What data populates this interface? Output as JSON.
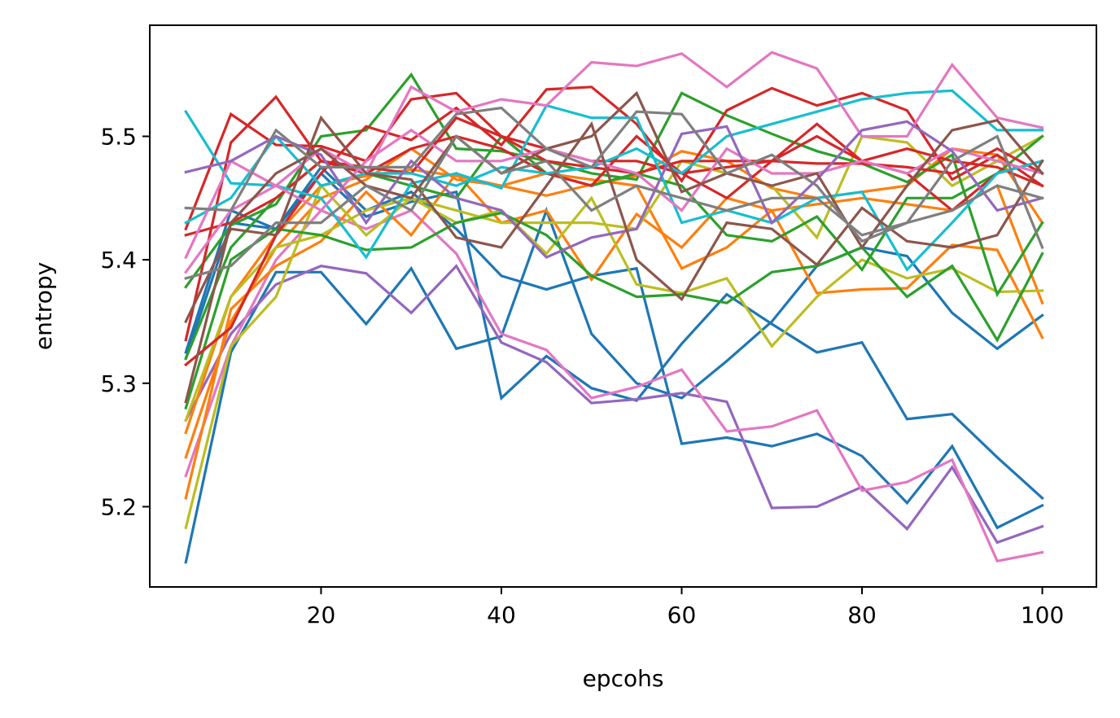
{
  "chart_data": {
    "type": "line",
    "xlabel": "epcohs",
    "ylabel": "entropy",
    "xlim": [
      1,
      106
    ],
    "ylim": [
      5.135,
      5.59
    ],
    "xticks": [
      20,
      40,
      60,
      80,
      100
    ],
    "xtick_labels": [
      "20",
      "40",
      "60",
      "80",
      "100"
    ],
    "yticks": [
      5.2,
      5.3,
      5.4,
      5.5
    ],
    "ytick_labels": [
      "5.2",
      "5.3",
      "5.4",
      "5.5"
    ],
    "grid": false,
    "legend": "none",
    "x": [
      5,
      10,
      15,
      20,
      25,
      30,
      35,
      40,
      45,
      50,
      55,
      60,
      65,
      70,
      75,
      80,
      85,
      90,
      95,
      100
    ],
    "series": [
      {
        "color": "#1f77b4",
        "values": [
          5.155,
          5.325,
          5.39,
          5.39,
          5.348,
          5.393,
          5.328,
          5.338,
          5.44,
          5.34,
          5.3,
          5.288,
          5.318,
          5.35,
          5.395,
          5.41,
          5.403,
          5.357,
          5.328,
          5.355
        ]
      },
      {
        "color": "#1f77b4",
        "values": [
          5.325,
          5.44,
          5.425,
          5.47,
          5.435,
          5.447,
          5.455,
          5.288,
          5.322,
          5.296,
          5.286,
          5.332,
          5.372,
          5.348,
          5.325,
          5.333,
          5.271,
          5.275,
          5.24,
          5.207
        ]
      },
      {
        "color": "#1f77b4",
        "values": [
          5.32,
          5.43,
          5.425,
          5.475,
          5.44,
          5.455,
          5.425,
          5.387,
          5.376,
          5.387,
          5.393,
          5.251,
          5.256,
          5.249,
          5.259,
          5.241,
          5.203,
          5.249,
          5.183,
          5.201
        ]
      },
      {
        "color": "#9467bd",
        "values": [
          5.27,
          5.34,
          5.38,
          5.395,
          5.389,
          5.357,
          5.395,
          5.333,
          5.317,
          5.284,
          5.287,
          5.292,
          5.285,
          5.199,
          5.2,
          5.216,
          5.182,
          5.232,
          5.171,
          5.184
        ]
      },
      {
        "color": "#e377c2",
        "values": [
          5.225,
          5.33,
          5.4,
          5.44,
          5.425,
          5.44,
          5.405,
          5.34,
          5.327,
          5.288,
          5.297,
          5.311,
          5.261,
          5.265,
          5.278,
          5.213,
          5.22,
          5.238,
          5.156,
          5.163
        ]
      },
      {
        "color": "#ff7f0e",
        "values": [
          5.207,
          5.36,
          5.395,
          5.415,
          5.455,
          5.42,
          5.47,
          5.43,
          5.44,
          5.384,
          5.437,
          5.41,
          5.45,
          5.44,
          5.373,
          5.376,
          5.377,
          5.412,
          5.408,
          5.337
        ]
      },
      {
        "color": "#ff7f0e",
        "values": [
          5.24,
          5.35,
          5.41,
          5.45,
          5.465,
          5.49,
          5.465,
          5.46,
          5.47,
          5.465,
          5.46,
          5.393,
          5.41,
          5.44,
          5.445,
          5.45,
          5.445,
          5.44,
          5.46,
          5.365
        ]
      },
      {
        "color": "#ff7f0e",
        "values": [
          5.26,
          5.37,
          5.42,
          5.46,
          5.468,
          5.473,
          5.468,
          5.46,
          5.452,
          5.461,
          5.468,
          5.488,
          5.48,
          5.458,
          5.45,
          5.455,
          5.46,
          5.49,
          5.485,
          5.43
        ]
      },
      {
        "color": "#bcbd22",
        "values": [
          5.183,
          5.33,
          5.37,
          5.46,
          5.42,
          5.45,
          5.43,
          5.44,
          5.405,
          5.45,
          5.38,
          5.373,
          5.385,
          5.33,
          5.37,
          5.4,
          5.385,
          5.393,
          5.374,
          5.375
        ]
      },
      {
        "color": "#bcbd22",
        "values": [
          5.27,
          5.37,
          5.41,
          5.42,
          5.44,
          5.45,
          5.44,
          5.43,
          5.43,
          5.43,
          5.425,
          5.48,
          5.47,
          5.46,
          5.418,
          5.5,
          5.495,
          5.46,
          5.48,
          5.5
        ]
      },
      {
        "color": "#2ca02c",
        "values": [
          5.28,
          5.4,
          5.425,
          5.42,
          5.408,
          5.41,
          5.43,
          5.438,
          5.42,
          5.387,
          5.37,
          5.372,
          5.365,
          5.39,
          5.395,
          5.41,
          5.37,
          5.395,
          5.335,
          5.405
        ]
      },
      {
        "color": "#2ca02c",
        "values": [
          5.378,
          5.428,
          5.445,
          5.5,
          5.505,
          5.55,
          5.49,
          5.488,
          5.48,
          5.47,
          5.465,
          5.535,
          5.517,
          5.502,
          5.488,
          5.478,
          5.463,
          5.485,
          5.372,
          5.43
        ]
      },
      {
        "color": "#2ca02c",
        "values": [
          5.32,
          5.41,
          5.45,
          5.48,
          5.47,
          5.46,
          5.45,
          5.5,
          5.47,
          5.46,
          5.47,
          5.46,
          5.42,
          5.415,
          5.435,
          5.392,
          5.45,
          5.45,
          5.47,
          5.5
        ]
      },
      {
        "color": "#d62728",
        "values": [
          5.315,
          5.345,
          5.42,
          5.47,
          5.508,
          5.497,
          5.523,
          5.493,
          5.538,
          5.54,
          5.51,
          5.464,
          5.521,
          5.539,
          5.525,
          5.535,
          5.521,
          5.465,
          5.485,
          5.46
        ]
      },
      {
        "color": "#d62728",
        "values": [
          5.425,
          5.518,
          5.493,
          5.492,
          5.48,
          5.53,
          5.535,
          5.5,
          5.49,
          5.48,
          5.48,
          5.47,
          5.475,
          5.48,
          5.478,
          5.478,
          5.475,
          5.47,
          5.49,
          5.47
        ]
      },
      {
        "color": "#d62728",
        "values": [
          5.335,
          5.495,
          5.532,
          5.48,
          5.475,
          5.47,
          5.515,
          5.5,
          5.48,
          5.475,
          5.47,
          5.48,
          5.48,
          5.48,
          5.51,
          5.48,
          5.49,
          5.48,
          5.475,
          5.46
        ]
      },
      {
        "color": "#d62728",
        "values": [
          5.42,
          5.43,
          5.45,
          5.48,
          5.47,
          5.49,
          5.5,
          5.49,
          5.47,
          5.46,
          5.5,
          5.47,
          5.45,
          5.48,
          5.5,
          5.48,
          5.47,
          5.44,
          5.47,
          5.48
        ]
      },
      {
        "color": "#17becf",
        "values": [
          5.52,
          5.462,
          5.46,
          5.45,
          5.402,
          5.462,
          5.47,
          5.458,
          5.525,
          5.515,
          5.515,
          5.43,
          5.44,
          5.43,
          5.45,
          5.455,
          5.392,
          5.43,
          5.47,
          5.48
        ]
      },
      {
        "color": "#17becf",
        "values": [
          5.43,
          5.45,
          5.5,
          5.46,
          5.47,
          5.47,
          5.46,
          5.475,
          5.47,
          5.475,
          5.49,
          5.47,
          5.5,
          5.51,
          5.52,
          5.53,
          5.535,
          5.537,
          5.505,
          5.505
        ]
      },
      {
        "color": "#e377c2",
        "values": [
          5.402,
          5.48,
          5.46,
          5.49,
          5.47,
          5.54,
          5.52,
          5.53,
          5.525,
          5.56,
          5.557,
          5.567,
          5.54,
          5.568,
          5.555,
          5.5,
          5.5,
          5.558,
          5.515,
          5.507
        ]
      },
      {
        "color": "#e377c2",
        "values": [
          5.39,
          5.44,
          5.46,
          5.44,
          5.48,
          5.505,
          5.48,
          5.48,
          5.49,
          5.48,
          5.47,
          5.44,
          5.49,
          5.47,
          5.47,
          5.48,
          5.47,
          5.49,
          5.48,
          5.47
        ]
      },
      {
        "color": "#9467bd",
        "values": [
          5.471,
          5.48,
          5.5,
          5.485,
          5.43,
          5.48,
          5.45,
          5.44,
          5.402,
          5.418,
          5.425,
          5.502,
          5.508,
          5.43,
          5.465,
          5.505,
          5.512,
          5.488,
          5.44,
          5.45
        ]
      },
      {
        "color": "#8c564b",
        "values": [
          5.35,
          5.425,
          5.42,
          5.515,
          5.47,
          5.465,
          5.418,
          5.41,
          5.46,
          5.51,
          5.4,
          5.368,
          5.43,
          5.425,
          5.396,
          5.442,
          5.415,
          5.41,
          5.42,
          5.48
        ]
      },
      {
        "color": "#8c564b",
        "values": [
          5.285,
          5.43,
          5.47,
          5.49,
          5.46,
          5.45,
          5.5,
          5.47,
          5.49,
          5.5,
          5.535,
          5.455,
          5.47,
          5.46,
          5.47,
          5.41,
          5.46,
          5.505,
          5.513,
          5.47
        ]
      },
      {
        "color": "#7f7f7f",
        "values": [
          5.442,
          5.44,
          5.505,
          5.475,
          5.475,
          5.475,
          5.518,
          5.523,
          5.49,
          5.475,
          5.52,
          5.518,
          5.47,
          5.485,
          5.46,
          5.415,
          5.43,
          5.48,
          5.5,
          5.41
        ]
      },
      {
        "color": "#7f7f7f",
        "values": [
          5.385,
          5.395,
          5.43,
          5.43,
          5.46,
          5.44,
          5.5,
          5.47,
          5.48,
          5.44,
          5.46,
          5.45,
          5.44,
          5.45,
          5.45,
          5.42,
          5.43,
          5.44,
          5.46,
          5.45
        ]
      }
    ]
  }
}
